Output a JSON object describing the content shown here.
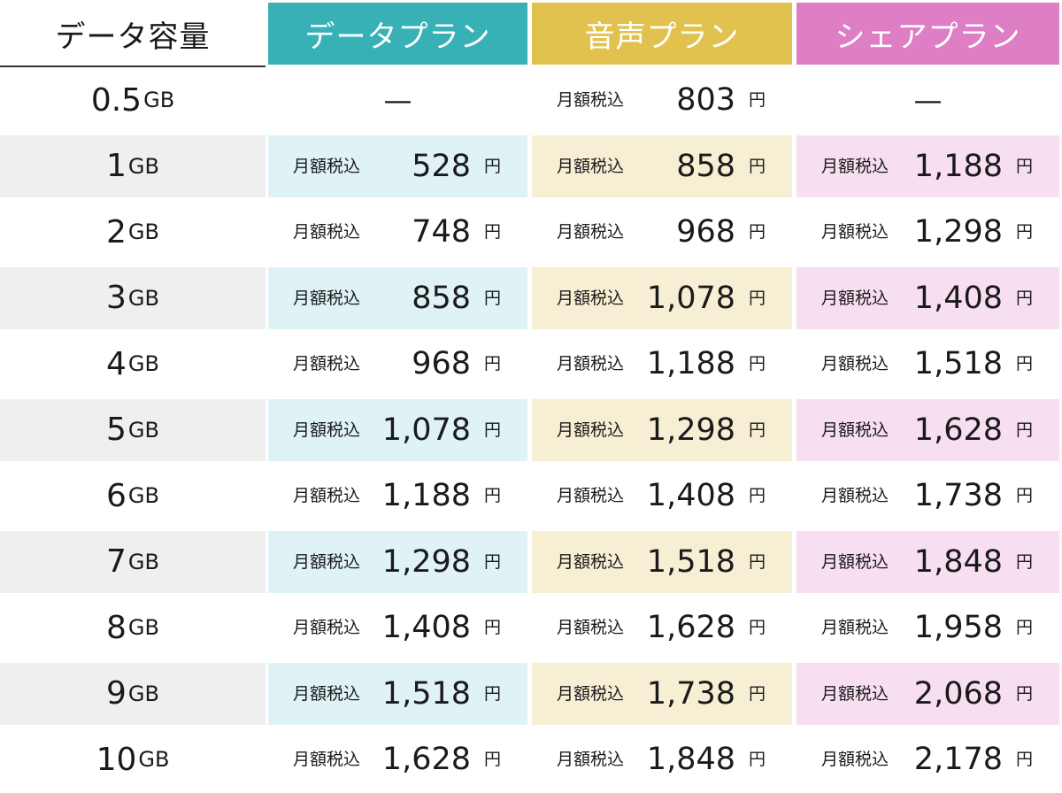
{
  "header": {
    "capacity": "データ容量",
    "plans": [
      "データプラン",
      "音声プラン",
      "シェアプラン"
    ]
  },
  "colors": {
    "data_plan": "#37b1b6",
    "voice_plan": "#e2c24f",
    "share_plan": "#de7fc6"
  },
  "price_label": "月額税込",
  "currency": "円",
  "rows": [
    {
      "num": "0.5",
      "unit": "GB",
      "data": "—",
      "voice": "803",
      "share": "—"
    },
    {
      "num": "1",
      "unit": "GB",
      "data": "528",
      "voice": "858",
      "share": "1,188"
    },
    {
      "num": "2",
      "unit": "GB",
      "data": "748",
      "voice": "968",
      "share": "1,298"
    },
    {
      "num": "3",
      "unit": "GB",
      "data": "858",
      "voice": "1,078",
      "share": "1,408"
    },
    {
      "num": "4",
      "unit": "GB",
      "data": "968",
      "voice": "1,188",
      "share": "1,518"
    },
    {
      "num": "5",
      "unit": "GB",
      "data": "1,078",
      "voice": "1,298",
      "share": "1,628"
    },
    {
      "num": "6",
      "unit": "GB",
      "data": "1,188",
      "voice": "1,408",
      "share": "1,738"
    },
    {
      "num": "7",
      "unit": "GB",
      "data": "1,298",
      "voice": "1,518",
      "share": "1,848"
    },
    {
      "num": "8",
      "unit": "GB",
      "data": "1,408",
      "voice": "1,628",
      "share": "1,958"
    },
    {
      "num": "9",
      "unit": "GB",
      "data": "1,518",
      "voice": "1,738",
      "share": "2,068"
    },
    {
      "num": "10",
      "unit": "GB",
      "data": "1,628",
      "voice": "1,848",
      "share": "2,178"
    }
  ]
}
